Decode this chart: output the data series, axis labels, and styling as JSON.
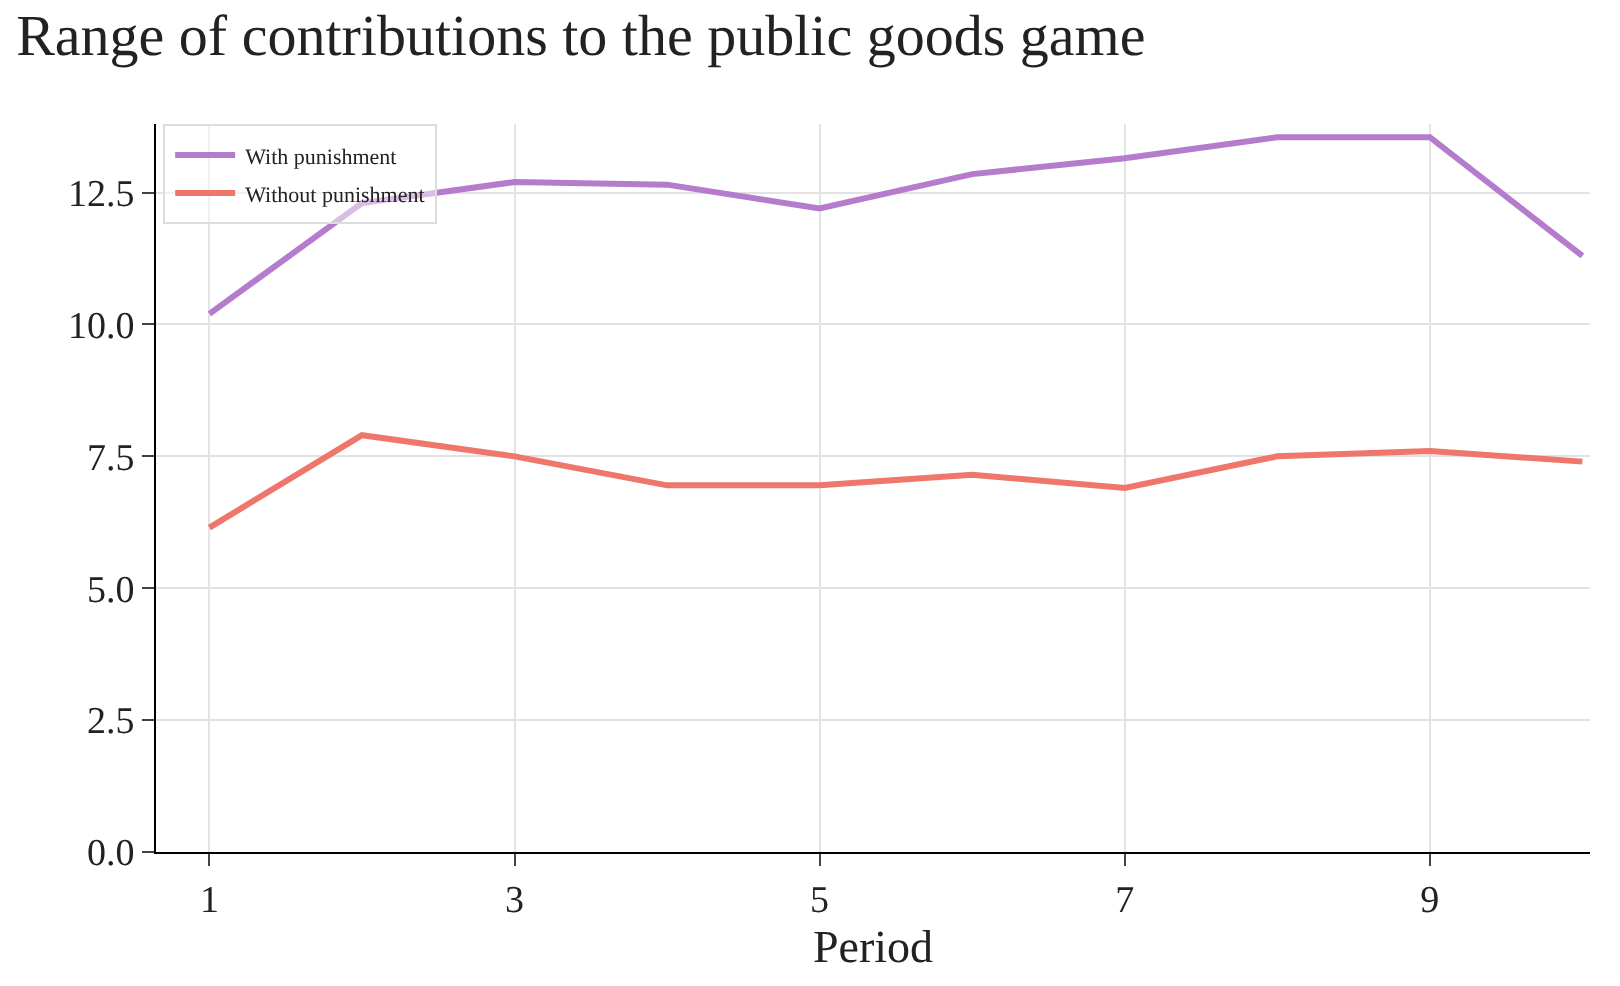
{
  "chart_data": {
    "type": "line",
    "title": "Range of contributions to the public goods game",
    "xlabel": "Period",
    "x": [
      1,
      2,
      3,
      4,
      5,
      6,
      7,
      8,
      9,
      10
    ],
    "series": [
      {
        "name": "With punishment",
        "color": "#b57bcc",
        "values": [
          10.2,
          12.3,
          12.7,
          12.65,
          12.2,
          12.85,
          13.15,
          13.55,
          13.55,
          11.3
        ]
      },
      {
        "name": "Without punishment",
        "color": "#ef766a",
        "values": [
          6.15,
          7.9,
          7.5,
          6.95,
          6.95,
          7.15,
          6.9,
          7.5,
          7.6,
          7.4
        ]
      }
    ],
    "xlim": [
      0.65,
      10.05
    ],
    "xticks": [
      1,
      3,
      5,
      7,
      9
    ],
    "ylim": [
      0,
      13.8
    ],
    "yticks": [
      {
        "value": 0,
        "label": "0.0"
      },
      2.5,
      {
        "value": 5,
        "label": "5.0"
      },
      7.5,
      {
        "value": 10,
        "label": "10.0"
      },
      12.5
    ],
    "grid": true,
    "legend": "top left",
    "marker": "none",
    "line_style": "solid"
  }
}
